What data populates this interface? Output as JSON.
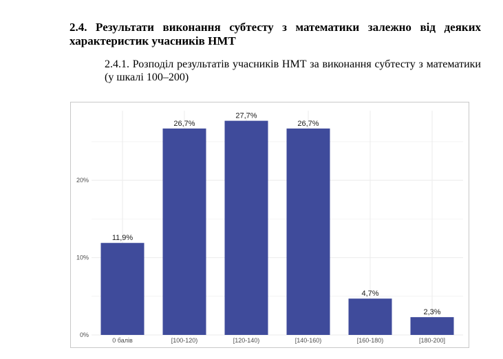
{
  "document": {
    "section_heading": "2.4. Результати виконання субтесту з математики залежно від деяких характеристик учасників НМТ",
    "sub_heading": "2.4.1. Розподіл результатів учасників НМТ за виконання субтесту з математики (у шкалі 100–200)"
  },
  "chart_data": {
    "type": "bar",
    "title": "",
    "xlabel": "",
    "ylabel": "",
    "categories": [
      "0 балів",
      "[100-120)",
      "[120-140)",
      "[140-160)",
      "[160-180)",
      "[180-200]"
    ],
    "values": [
      11.9,
      26.7,
      27.7,
      26.7,
      4.7,
      2.3
    ],
    "data_labels": [
      "11,9%",
      "26,7%",
      "27,7%",
      "26,7%",
      "4,7%",
      "2,3%"
    ],
    "ylim": [
      0,
      29
    ],
    "y_ticks": [
      0,
      10,
      20
    ],
    "y_tick_labels": [
      "0%",
      "10%",
      "20%"
    ],
    "grid": true,
    "legend": "none",
    "colors": {
      "bar": "#3f4b9b",
      "grid": "#ebebeb",
      "frame": "#c8c8c8",
      "tick_text": "#4d4d4d"
    }
  }
}
